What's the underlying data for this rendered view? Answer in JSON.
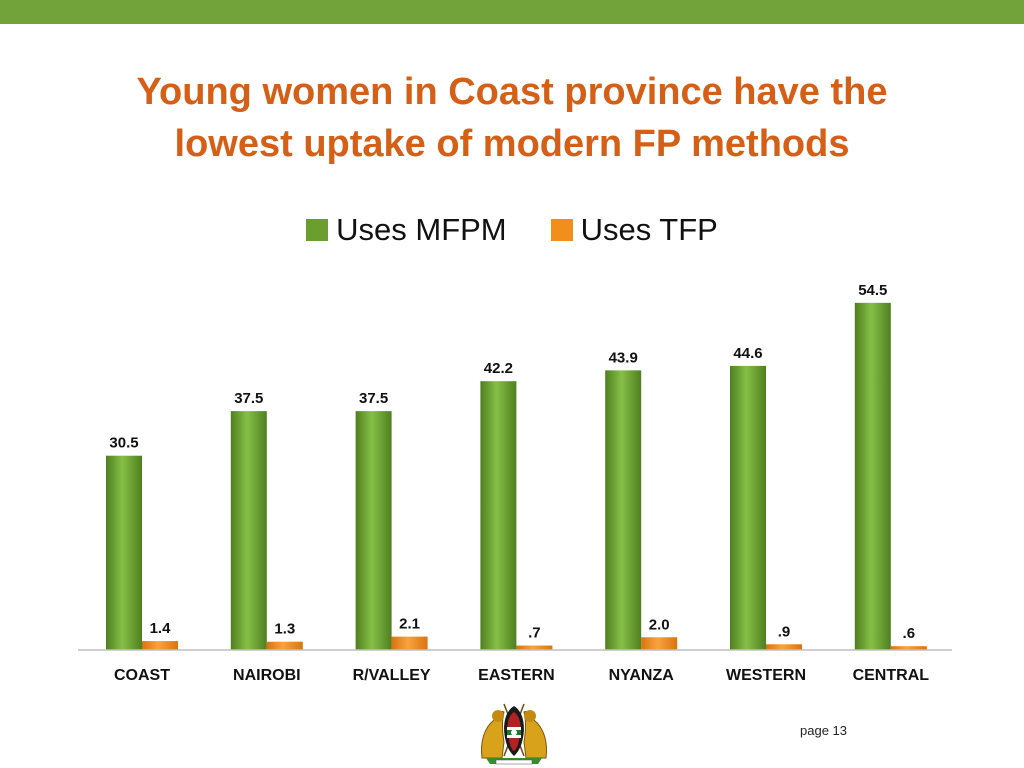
{
  "slide": {
    "title_line1": "Young women in Coast province have the",
    "title_line2": "lowest uptake of modern FP methods",
    "page_label": "page 13",
    "accent_color": "#72a33a",
    "title_color": "#d55f16"
  },
  "emblem": {
    "icon": "kenya-coat-of-arms-icon"
  },
  "chart_data": {
    "type": "bar",
    "title": "",
    "xlabel": "",
    "ylabel": "",
    "categories": [
      "COAST",
      "NAIROBI",
      "R/VALLEY",
      "EASTERN",
      "NYANZA",
      "WESTERN",
      "CENTRAL"
    ],
    "series": [
      {
        "name": "Uses MFPM",
        "color": "#6a9e2f",
        "values": [
          30.5,
          37.5,
          37.5,
          42.2,
          43.9,
          44.6,
          54.5
        ],
        "labels": [
          "30.5",
          "37.5",
          "37.5",
          "42.2",
          "43.9",
          "44.6",
          "54.5"
        ]
      },
      {
        "name": "Uses TFP",
        "color": "#f28e1c",
        "values": [
          1.4,
          1.3,
          2.1,
          0.7,
          2.0,
          0.9,
          0.6
        ],
        "labels": [
          "1.4",
          "1.3",
          "2.1",
          ".7",
          "2.0",
          ".9",
          ".6"
        ]
      }
    ],
    "ylim": [
      0,
      60
    ],
    "grid": false,
    "legend_position": "top-center"
  }
}
